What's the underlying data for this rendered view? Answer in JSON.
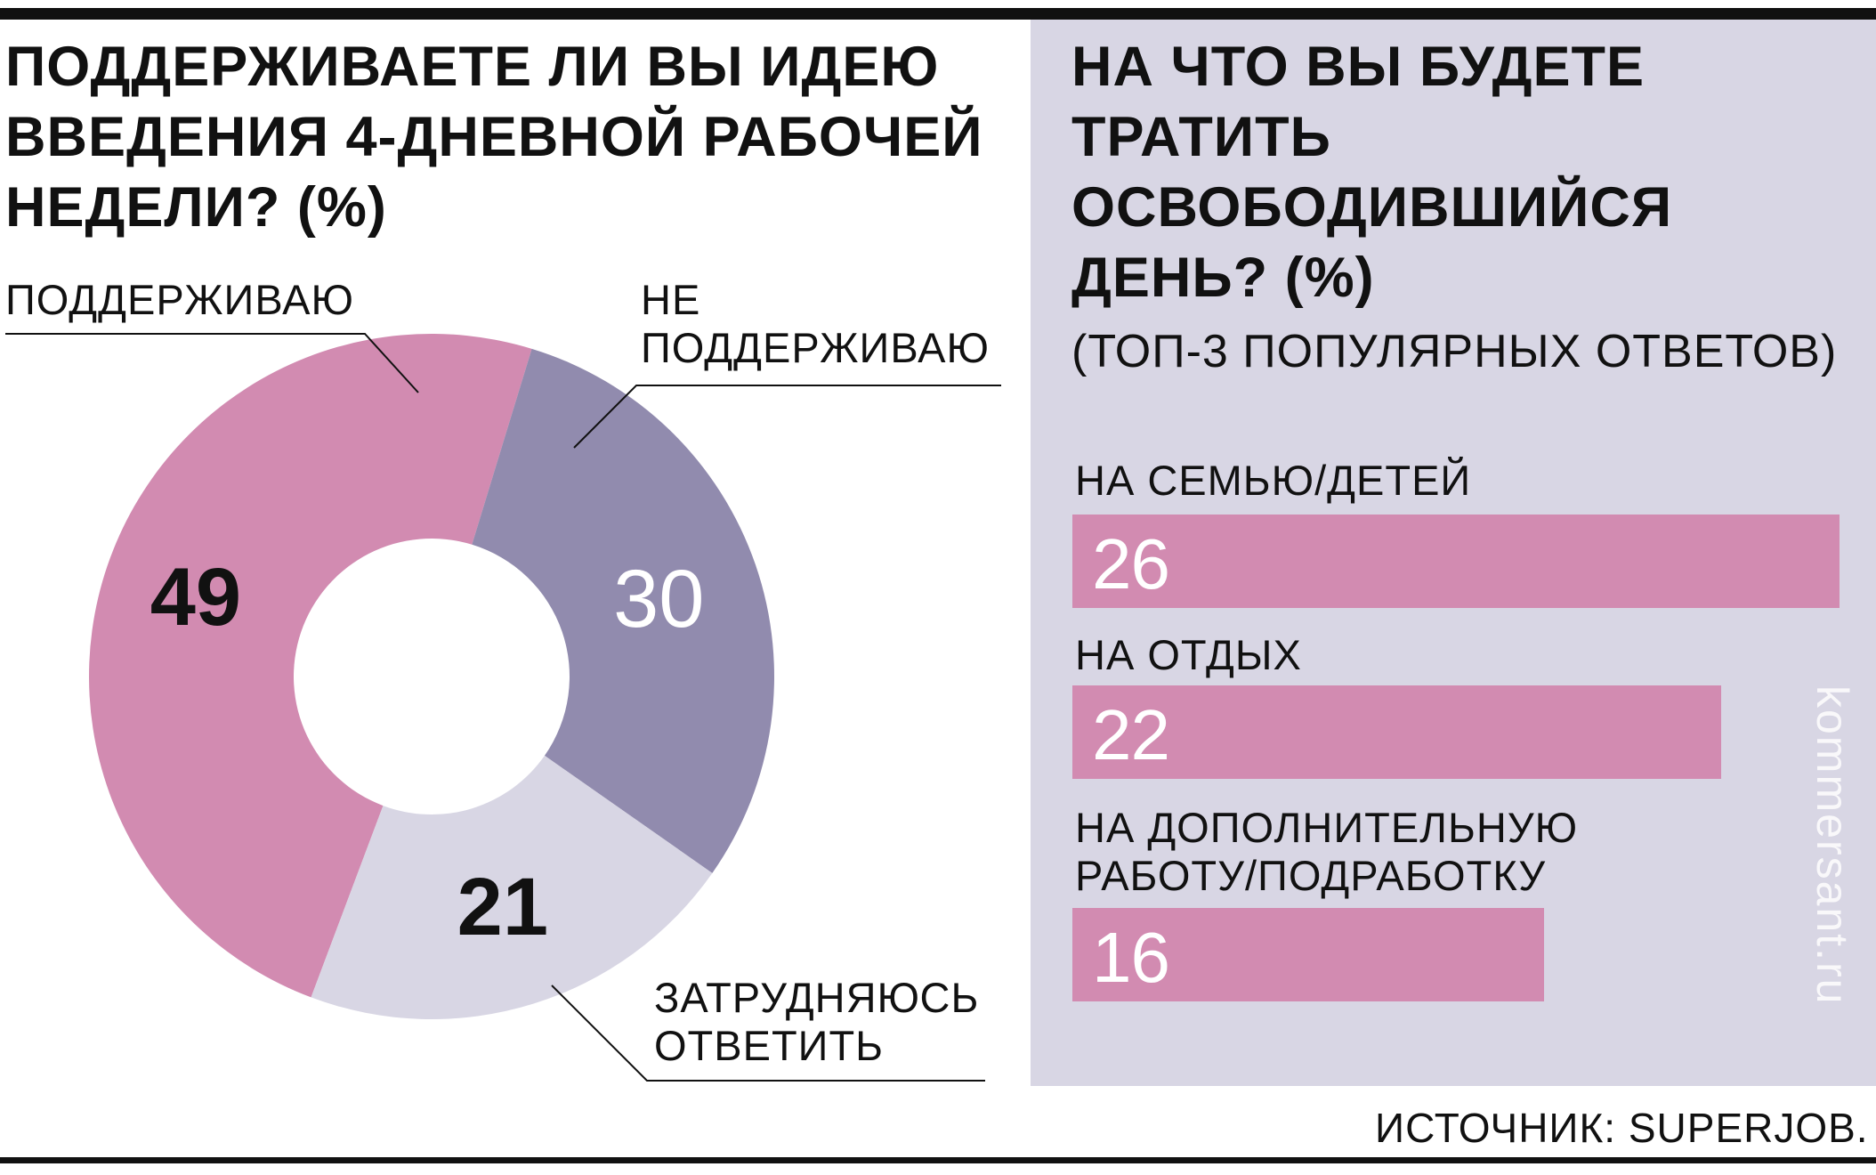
{
  "left": {
    "title": "ПОДДЕРЖИВАЕТЕ ЛИ ВЫ ИДЕЮ ВВЕДЕНИЯ 4-ДНЕВНОЙ РАБОЧЕЙ НЕДЕЛИ? (%)",
    "labels": {
      "support": "ПОДДЕРЖИВАЮ",
      "not_support_line1": "НЕ",
      "not_support_line2": "ПОДДЕРЖИВАЮ",
      "undecided_line1": "ЗАТРУДНЯЮСЬ",
      "undecided_line2": "ОТВЕТИТЬ"
    }
  },
  "right": {
    "title": "НА ЧТО ВЫ БУДЕТЕ ТРАТИТЬ ОСВОБОДИВШИЙСЯ ДЕНЬ? (%)",
    "subtitle": "(ТОП-3 ПОПУЛЯРНЫХ ОТВЕТОВ)",
    "bars": [
      {
        "label_line1": "НА СЕМЬЮ/ДЕТЕЙ",
        "label_line2": "",
        "value": "26"
      },
      {
        "label_line1": "НА ОТДЫХ",
        "label_line2": "",
        "value": "22"
      },
      {
        "label_line1": "НА ДОПОЛНИТЕЛЬНУЮ",
        "label_line2": "РАБОТУ/ПОДРАБОТКУ",
        "value": "16"
      }
    ]
  },
  "watermark": "kommersant.ru",
  "source": "ИСТОЧНИК: SUPERJOB.",
  "colors": {
    "pink": "#d28bb1",
    "purple": "#918bae",
    "lavender": "#d8d6e4",
    "panel": "#d8d6e4",
    "text": "#111111"
  },
  "chart_data": [
    {
      "type": "pie",
      "title": "ПОДДЕРЖИВАЕТЕ ЛИ ВЫ ИДЕЮ ВВЕДЕНИЯ 4-ДНЕВНОЙ РАБОЧЕЙ НЕДЕЛИ? (%)",
      "categories": [
        "ПОДДЕРЖИВАЮ",
        "НЕ ПОДДЕРЖИВАЮ",
        "ЗАТРУДНЯЮСЬ ОТВЕТИТЬ"
      ],
      "values": [
        49,
        30,
        21
      ],
      "colors": [
        "#d28bb1",
        "#918bae",
        "#d8d6e4"
      ],
      "donut": true
    },
    {
      "type": "bar",
      "orientation": "horizontal",
      "title": "НА ЧТО ВЫ БУДЕТЕ ТРАТИТЬ ОСВОБОДИВШИЙСЯ ДЕНЬ? (%)",
      "subtitle": "(ТОП-3 ПОПУЛЯРНЫХ ОТВЕТОВ)",
      "categories": [
        "НА СЕМЬЮ/ДЕТЕЙ",
        "НА ОТДЫХ",
        "НА ДОПОЛНИТЕЛЬНУЮ РАБОТУ/ПОДРАБОТКУ"
      ],
      "values": [
        26,
        22,
        16
      ],
      "color": "#d28bb1"
    }
  ]
}
